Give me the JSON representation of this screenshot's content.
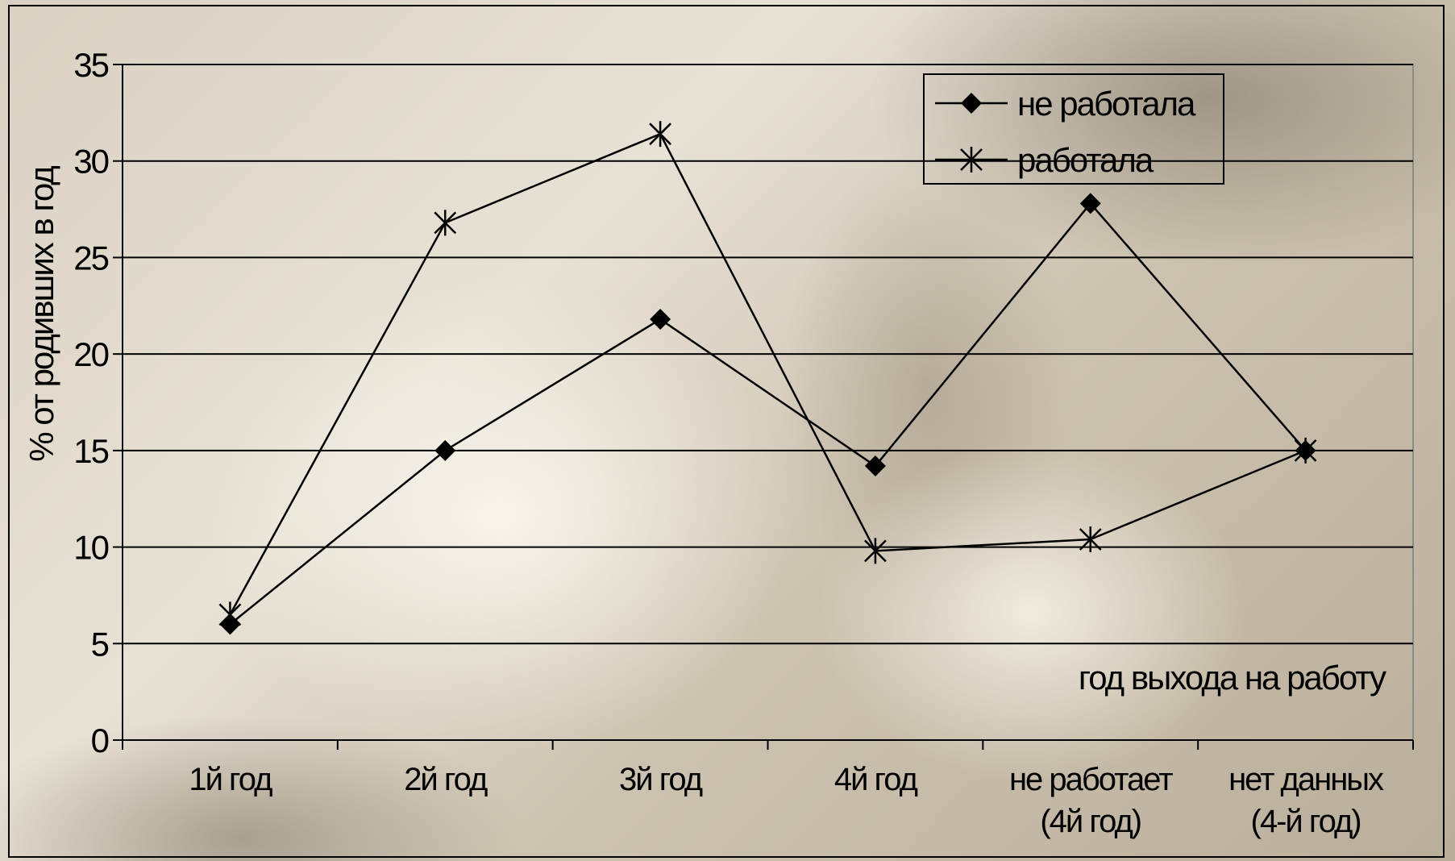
{
  "chart_data": {
    "type": "line",
    "title": "",
    "ylabel": "% от родивших в год",
    "xlabel": "год выхода на работу",
    "ylim": [
      0,
      35
    ],
    "yticks": [
      0,
      5,
      10,
      15,
      20,
      25,
      30,
      35
    ],
    "categories": [
      [
        "1й год"
      ],
      [
        "2й год"
      ],
      [
        "3й год"
      ],
      [
        "4й год"
      ],
      [
        "не работает",
        "(4й год)"
      ],
      [
        "нет данных",
        "(4-й год)"
      ]
    ],
    "series": [
      {
        "name": "не работала",
        "marker": "diamond",
        "values": [
          6.0,
          15.0,
          21.8,
          14.2,
          27.8,
          15.0
        ]
      },
      {
        "name": "работала",
        "marker": "asterisk",
        "values": [
          6.5,
          26.8,
          31.4,
          9.8,
          10.4,
          15.0
        ]
      }
    ],
    "grid": true,
    "legend_position": "top-right",
    "line_color": "#000000"
  }
}
